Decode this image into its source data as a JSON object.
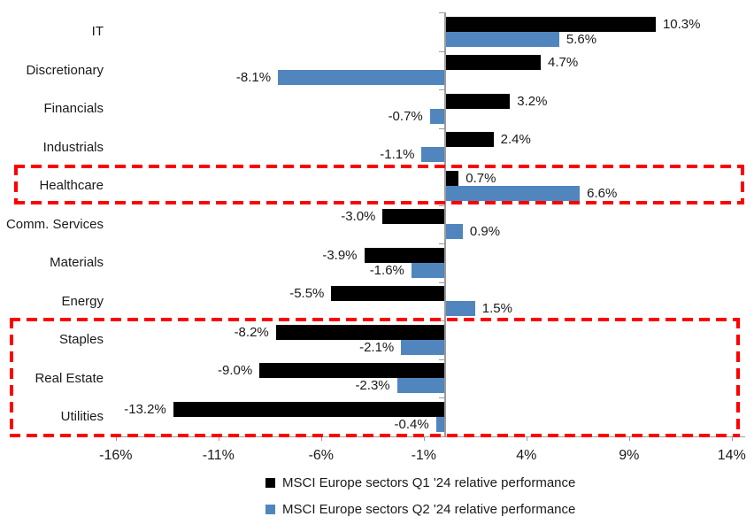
{
  "chart_data": {
    "type": "bar",
    "orientation": "horizontal",
    "title": "",
    "categories": [
      "IT",
      "Discretionary",
      "Financials",
      "Industrials",
      "Healthcare",
      "Comm. Services",
      "Materials",
      "Energy",
      "Staples",
      "Real Estate",
      "Utilities"
    ],
    "series": [
      {
        "name": "MSCI Europe sectors Q1 '24 relative performance",
        "color": "#000000",
        "values": [
          10.3,
          4.7,
          3.2,
          2.4,
          0.7,
          -3.0,
          -3.9,
          -5.5,
          -8.2,
          -9.0,
          -13.2
        ],
        "labels": [
          "10.3%",
          "4.7%",
          "3.2%",
          "2.4%",
          "0.7%",
          "-3.0%",
          "-3.9%",
          "-5.5%",
          "-8.2%",
          "-9.0%",
          "-13.2%"
        ]
      },
      {
        "name": "MSCI Europe sectors Q2 '24 relative performance",
        "color": "#5086BD",
        "values": [
          5.6,
          -8.1,
          -0.7,
          -1.1,
          6.6,
          0.9,
          -1.6,
          1.5,
          -2.1,
          -2.3,
          -0.4
        ],
        "labels": [
          "5.6%",
          "-8.1%",
          "-0.7%",
          "-1.1%",
          "6.6%",
          "0.9%",
          "-1.6%",
          "1.5%",
          "-2.1%",
          "-2.3%",
          "-0.4%"
        ]
      }
    ],
    "x_axis": {
      "unit": "%",
      "min": -16,
      "max": 14,
      "tick_interval": 5,
      "ticks": [
        "-16%",
        "-11%",
        "-6%",
        "-1%",
        "4%",
        "9%",
        "14%"
      ],
      "tick_values": [
        -16,
        -11,
        -6,
        -1,
        4,
        9,
        14
      ]
    },
    "grid": false,
    "legend_position": "bottom",
    "axis_color": "#9B9B9B",
    "annotations": {
      "highlight_boxes": [
        {
          "sectors": [
            "Healthcare"
          ],
          "color": "#FE0000",
          "style": "dashed"
        },
        {
          "sectors": [
            "Staples",
            "Real Estate",
            "Utilities"
          ],
          "color": "#FE0000",
          "style": "dashed"
        }
      ]
    }
  }
}
